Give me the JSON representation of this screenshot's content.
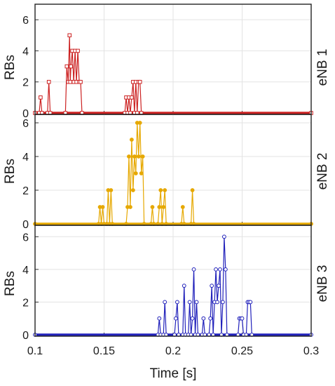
{
  "chart_data": {
    "type": "line",
    "xlabel": "Time [s]",
    "xlim": [
      0.1,
      0.3
    ],
    "x_ticks": [
      "0.1",
      "0.15",
      "0.2",
      "0.25",
      "0.3"
    ],
    "grid": true,
    "panels": [
      {
        "title": "eNB 1",
        "ylabel": "RBs",
        "ylim": [
          0,
          7
        ],
        "y_ticks": [
          "0",
          "2",
          "4",
          "6"
        ],
        "color": "#cc2222",
        "marker": "square",
        "points": [
          [
            0.1,
            0
          ],
          [
            0.103,
            0
          ],
          [
            0.104,
            1
          ],
          [
            0.105,
            0
          ],
          [
            0.109,
            0
          ],
          [
            0.11,
            2
          ],
          [
            0.111,
            0
          ],
          [
            0.122,
            0
          ],
          [
            0.123,
            3
          ],
          [
            0.124,
            2
          ],
          [
            0.125,
            5
          ],
          [
            0.1255,
            2
          ],
          [
            0.126,
            3
          ],
          [
            0.127,
            4
          ],
          [
            0.128,
            2
          ],
          [
            0.129,
            4
          ],
          [
            0.13,
            2
          ],
          [
            0.131,
            4
          ],
          [
            0.132,
            2
          ],
          [
            0.133,
            2
          ],
          [
            0.134,
            0
          ],
          [
            0.165,
            0
          ],
          [
            0.166,
            1
          ],
          [
            0.167,
            0
          ],
          [
            0.168,
            1
          ],
          [
            0.169,
            0
          ],
          [
            0.17,
            1
          ],
          [
            0.171,
            2
          ],
          [
            0.172,
            0
          ],
          [
            0.173,
            2
          ],
          [
            0.174,
            0
          ],
          [
            0.175,
            2
          ],
          [
            0.176,
            2
          ],
          [
            0.177,
            0
          ],
          [
            0.3,
            0
          ]
        ]
      },
      {
        "title": "eNB 2",
        "ylabel": "RBs",
        "ylim": [
          0,
          6.5
        ],
        "y_ticks": [
          "0",
          "2",
          "4",
          "6"
        ],
        "color": "#e6a800",
        "marker": "circle",
        "points": [
          [
            0.1,
            0
          ],
          [
            0.146,
            0
          ],
          [
            0.147,
            1
          ],
          [
            0.148,
            0
          ],
          [
            0.149,
            1
          ],
          [
            0.15,
            0
          ],
          [
            0.152,
            0
          ],
          [
            0.153,
            2
          ],
          [
            0.154,
            0
          ],
          [
            0.155,
            2
          ],
          [
            0.156,
            0
          ],
          [
            0.166,
            0
          ],
          [
            0.167,
            1
          ],
          [
            0.168,
            4
          ],
          [
            0.169,
            1
          ],
          [
            0.17,
            5
          ],
          [
            0.171,
            2
          ],
          [
            0.172,
            4
          ],
          [
            0.173,
            3
          ],
          [
            0.174,
            6
          ],
          [
            0.175,
            4
          ],
          [
            0.176,
            6
          ],
          [
            0.177,
            3
          ],
          [
            0.178,
            4
          ],
          [
            0.179,
            0
          ],
          [
            0.184,
            0
          ],
          [
            0.185,
            1
          ],
          [
            0.186,
            0
          ],
          [
            0.189,
            0
          ],
          [
            0.19,
            1
          ],
          [
            0.191,
            2
          ],
          [
            0.192,
            0
          ],
          [
            0.193,
            1
          ],
          [
            0.194,
            2
          ],
          [
            0.195,
            0
          ],
          [
            0.206,
            0
          ],
          [
            0.207,
            1
          ],
          [
            0.208,
            0
          ],
          [
            0.213,
            0
          ],
          [
            0.214,
            2
          ],
          [
            0.215,
            0
          ],
          [
            0.3,
            0
          ]
        ]
      },
      {
        "title": "eNB 3",
        "ylabel": "RBs",
        "ylim": [
          0,
          6.7
        ],
        "y_ticks": [
          "0",
          "2",
          "4",
          "6"
        ],
        "color": "#2222bb",
        "marker": "circle",
        "points": [
          [
            0.1,
            0
          ],
          [
            0.189,
            0
          ],
          [
            0.19,
            1
          ],
          [
            0.191,
            0
          ],
          [
            0.193,
            0
          ],
          [
            0.194,
            2
          ],
          [
            0.195,
            0
          ],
          [
            0.201,
            0
          ],
          [
            0.202,
            1
          ],
          [
            0.203,
            2
          ],
          [
            0.204,
            0
          ],
          [
            0.207,
            0
          ],
          [
            0.208,
            3
          ],
          [
            0.209,
            0
          ],
          [
            0.211,
            0
          ],
          [
            0.212,
            2
          ],
          [
            0.213,
            0
          ],
          [
            0.214,
            1
          ],
          [
            0.215,
            4
          ],
          [
            0.216,
            0
          ],
          [
            0.217,
            2
          ],
          [
            0.218,
            0
          ],
          [
            0.221,
            0
          ],
          [
            0.222,
            1
          ],
          [
            0.223,
            0
          ],
          [
            0.226,
            0
          ],
          [
            0.227,
            1
          ],
          [
            0.228,
            3
          ],
          [
            0.229,
            0
          ],
          [
            0.23,
            2
          ],
          [
            0.231,
            4
          ],
          [
            0.232,
            2
          ],
          [
            0.233,
            3
          ],
          [
            0.234,
            4
          ],
          [
            0.235,
            0
          ],
          [
            0.236,
            2
          ],
          [
            0.237,
            6
          ],
          [
            0.238,
            4
          ],
          [
            0.239,
            0
          ],
          [
            0.247,
            0
          ],
          [
            0.248,
            1
          ],
          [
            0.249,
            1
          ],
          [
            0.25,
            1
          ],
          [
            0.251,
            0
          ],
          [
            0.253,
            0
          ],
          [
            0.254,
            2
          ],
          [
            0.255,
            2
          ],
          [
            0.256,
            2
          ],
          [
            0.257,
            0
          ],
          [
            0.3,
            0
          ]
        ]
      }
    ]
  }
}
